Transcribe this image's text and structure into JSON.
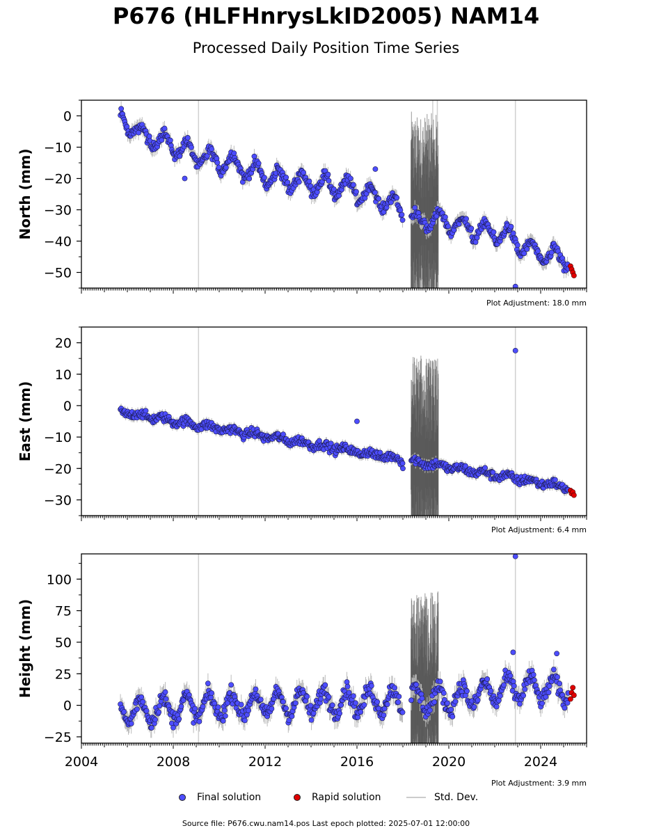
{
  "title": "P676 (HLFHnrysLkID2005) NAM14",
  "subtitle": "Processed Daily Position Time Series",
  "source_label": "Source file: P676.cwu.nam14.pos  Last epoch plotted: 2025-07-01 12:00:00",
  "legend": {
    "final": "Final solution",
    "rapid": "Rapid solution",
    "stddev": "Std. Dev."
  },
  "colors": {
    "final": "#4d4dff",
    "rapid": "#e00000",
    "stddev": "#bbbbbb",
    "dense_noise": "#555555"
  },
  "chart_data": [
    {
      "type": "scatter",
      "component": "north",
      "ylabel": "North (mm)",
      "ylim": [
        -55,
        5
      ],
      "yticks": [
        0,
        -10,
        -20,
        -30,
        -40,
        -50
      ],
      "ytick_labels": [
        "0",
        "−10",
        "−20",
        "−30",
        "−40",
        "−50"
      ],
      "xlim": [
        2004,
        2026
      ],
      "adjustment": "Plot Adjustment: 18.0 mm",
      "series": [
        {
          "name": "Final solution",
          "x": [
            2005.7,
            2006.5,
            2007.5,
            2008.5,
            2009.5,
            2010.5,
            2011.5,
            2012.5,
            2013.5,
            2014.5,
            2015.5,
            2016.5,
            2017.5,
            2018.6,
            2019.5,
            2020.5,
            2021.5,
            2022.5,
            2023.5,
            2024.5,
            2025.2
          ],
          "y": [
            0,
            -6,
            -8,
            -11,
            -14,
            -15,
            -18,
            -20,
            -21,
            -22,
            -23,
            -25,
            -28,
            -34,
            -33,
            -35,
            -37,
            -38,
            -43,
            -45,
            -46
          ]
        },
        {
          "name": "Rapid solution",
          "x": [
            2025.3,
            2025.35,
            2025.4,
            2025.45
          ],
          "y": [
            -48,
            -49,
            -50,
            -51
          ]
        }
      ],
      "outliers": [
        {
          "x": 2022.9,
          "y": -54.5
        },
        {
          "x": 2016.8,
          "y": -17
        },
        {
          "x": 2008.5,
          "y": -20
        }
      ]
    },
    {
      "type": "scatter",
      "component": "east",
      "ylabel": "East (mm)",
      "ylim": [
        -35,
        25
      ],
      "yticks": [
        20,
        10,
        0,
        -10,
        -20,
        -30
      ],
      "ytick_labels": [
        "20",
        "10",
        "0",
        "−10",
        "−20",
        "−30"
      ],
      "xlim": [
        2004,
        2026
      ],
      "adjustment": "Plot Adjustment: 6.4 mm",
      "series": [
        {
          "name": "Final solution",
          "x": [
            2005.7,
            2025.2
          ],
          "y": [
            -2,
            -26
          ]
        },
        {
          "name": "Rapid solution",
          "x": [
            2025.3,
            2025.35,
            2025.4,
            2025.45
          ],
          "y": [
            -27,
            -28,
            -27.5,
            -28.5
          ]
        }
      ],
      "outliers": [
        {
          "x": 2022.9,
          "y": 17.5
        },
        {
          "x": 2016.0,
          "y": -5
        },
        {
          "x": 2018.0,
          "y": -20
        }
      ]
    },
    {
      "type": "scatter",
      "component": "height",
      "ylabel": "Height (mm)",
      "ylim": [
        -30,
        120
      ],
      "yticks": [
        100,
        75,
        50,
        25,
        0,
        -25
      ],
      "ytick_labels": [
        "100",
        "75",
        "50",
        "25",
        "0",
        "−25"
      ],
      "xlim": [
        2004,
        2026
      ],
      "xticks": [
        2004,
        2008,
        2012,
        2016,
        2020,
        2024
      ],
      "adjustment": "Plot Adjustment: 3.9 mm",
      "series": [
        {
          "name": "Final solution",
          "x": [
            2005.7,
            2010,
            2015,
            2020,
            2023,
            2025.2
          ],
          "y": [
            -5,
            0,
            3,
            5,
            14,
            12
          ]
        },
        {
          "name": "Rapid solution",
          "x": [
            2025.3,
            2025.35,
            2025.4,
            2025.45
          ],
          "y": [
            5,
            10,
            14,
            8
          ]
        }
      ],
      "outliers": [
        {
          "x": 2022.9,
          "y": 118
        },
        {
          "x": 2022.8,
          "y": 42
        },
        {
          "x": 2024.7,
          "y": 41
        }
      ]
    }
  ]
}
